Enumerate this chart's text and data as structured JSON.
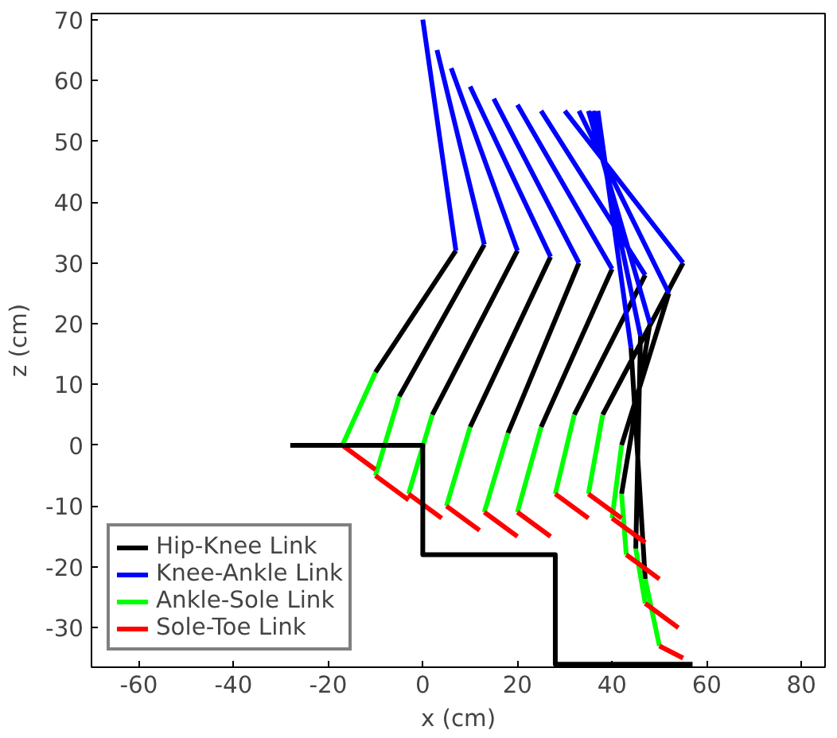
{
  "chart_data": {
    "type": "line",
    "xlabel": "x (cm)",
    "ylabel": "z (cm)",
    "xlim": [
      -70,
      85
    ],
    "ylim": [
      -36.5,
      71
    ],
    "xticks": [
      -60,
      -40,
      -20,
      0,
      20,
      40,
      60,
      80
    ],
    "yticks": [
      -30,
      -20,
      -10,
      0,
      10,
      20,
      30,
      40,
      50,
      60,
      70
    ],
    "grid": false,
    "legend": "bottom left",
    "marker": "none",
    "line_style": "solid",
    "series": [
      {
        "name": "Hip-Knee Link",
        "color": "#000000",
        "x": [
          7,
          -10,
          null,
          13,
          -5,
          null,
          20,
          2,
          null,
          27,
          10,
          null,
          33,
          18,
          null,
          40,
          25,
          null,
          47,
          32,
          null,
          55,
          38,
          null,
          52,
          42,
          null,
          48,
          42,
          null,
          46,
          45,
          null,
          44,
          47
        ],
        "values": [
          32,
          12,
          null,
          33,
          8,
          null,
          32,
          5,
          null,
          31,
          3,
          null,
          30,
          2,
          null,
          29,
          3,
          null,
          28,
          5,
          null,
          30,
          5,
          null,
          25,
          0,
          null,
          20,
          -8,
          null,
          18,
          -17,
          null,
          16,
          -22
        ]
      },
      {
        "name": "Knee-Ankle Link",
        "color": "#0000ff",
        "x": [
          0,
          7,
          null,
          3,
          13,
          null,
          6,
          20,
          null,
          10,
          27,
          null,
          15,
          33,
          null,
          20,
          40,
          null,
          25,
          47,
          null,
          30,
          55,
          null,
          33,
          52,
          null,
          35,
          48,
          null,
          36,
          46,
          null,
          37,
          44
        ],
        "values": [
          70,
          32,
          null,
          65,
          33,
          null,
          62,
          32,
          null,
          59,
          31,
          null,
          57,
          30,
          null,
          56,
          29,
          null,
          55,
          28,
          null,
          55,
          30,
          null,
          55,
          25,
          null,
          55,
          20,
          null,
          55,
          18,
          null,
          55,
          16
        ]
      },
      {
        "name": "Ankle-Sole Link",
        "color": "#00ff00",
        "x": [
          -10,
          -17,
          null,
          -5,
          -10,
          null,
          2,
          -3,
          null,
          10,
          5,
          null,
          18,
          13,
          null,
          25,
          20,
          null,
          32,
          28,
          null,
          38,
          35,
          null,
          42,
          40,
          null,
          42,
          43,
          null,
          45,
          47,
          null,
          47,
          50
        ],
        "values": [
          12,
          0,
          null,
          8,
          -5,
          null,
          5,
          -8,
          null,
          3,
          -10,
          null,
          2,
          -11,
          null,
          3,
          -11,
          null,
          5,
          -8,
          null,
          5,
          -8,
          null,
          0,
          -12,
          null,
          -8,
          -18,
          null,
          -17,
          -26,
          null,
          -22,
          -33
        ]
      },
      {
        "name": "Sole-Toe Link",
        "color": "#ff0000",
        "x": [
          -17,
          -10,
          null,
          -10,
          -3,
          null,
          -3,
          4,
          null,
          5,
          12,
          null,
          13,
          20,
          null,
          20,
          27,
          null,
          28,
          35,
          null,
          35,
          42,
          null,
          40,
          47,
          null,
          43,
          50,
          null,
          47,
          54,
          null,
          50,
          55
        ],
        "values": [
          0,
          -4,
          null,
          -5,
          -9,
          null,
          -8,
          -12,
          null,
          -10,
          -14,
          null,
          -11,
          -15,
          null,
          -11,
          -15,
          null,
          -8,
          -12,
          null,
          -8,
          -12,
          null,
          -12,
          -16,
          null,
          -18,
          -22,
          null,
          -26,
          -30,
          null,
          -33,
          -35
        ]
      },
      {
        "color": "#000000",
        "x": [
          -28,
          0,
          0,
          28,
          28,
          57
        ],
        "values": [
          0,
          0,
          -18,
          -18,
          -36,
          -36
        ]
      }
    ]
  }
}
